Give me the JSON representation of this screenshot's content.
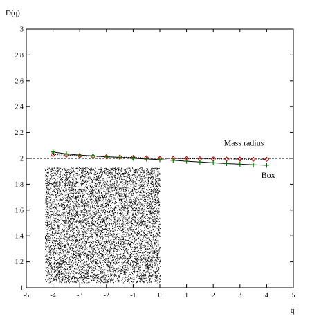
{
  "chart_data": {
    "type": "line",
    "ylabel": "D(q)",
    "xlabel": "q",
    "xlim": [
      -5,
      5
    ],
    "ylim": [
      1,
      3
    ],
    "xticks": [
      -5,
      -4,
      -3,
      -2,
      -1,
      0,
      1,
      2,
      3,
      4,
      5
    ],
    "yticks": [
      1,
      1.2,
      1.4,
      1.6,
      1.8,
      2,
      2.2,
      2.4,
      2.6,
      2.8,
      3
    ],
    "xtick_labels": [
      "-5",
      "-4",
      "-3",
      "-2",
      "-1",
      "0",
      "1",
      "2",
      "3",
      "4",
      "5"
    ],
    "ytick_labels": [
      "1",
      "1.2",
      "1.4",
      "1.6",
      "1.8",
      "2",
      "2.2",
      "2.4",
      "2.6",
      "2.8",
      "3"
    ],
    "reference_line": {
      "y": 2,
      "style": "dashed",
      "color": "#000000"
    },
    "inset": {
      "type": "random-dot-pattern",
      "x_range": [
        -4.3,
        0
      ],
      "y_range": [
        1.04,
        1.93
      ]
    },
    "series": [
      {
        "name": "Mass radius",
        "color": "#cc0000",
        "marker": "diamond",
        "line_style": "dotted",
        "x": [
          -4,
          -3.5,
          -3,
          -2.5,
          -2,
          -1.5,
          -1,
          -0.5,
          0,
          0.5,
          1,
          1.5,
          2,
          2.5,
          3,
          3.5,
          4
        ],
        "y": [
          2.03,
          2.025,
          2.02,
          2.016,
          2.013,
          2.01,
          2.007,
          2.004,
          2.0,
          1.999,
          1.998,
          1.997,
          1.996,
          1.995,
          1.994,
          1.993,
          1.993
        ]
      },
      {
        "name": "Box",
        "color": "#007700",
        "marker": "plus",
        "line_style": "solid",
        "x": [
          -4,
          -3.5,
          -3,
          -2.5,
          -2,
          -1.5,
          -1,
          -0.5,
          0,
          0.5,
          1,
          1.5,
          2,
          2.5,
          3,
          3.5,
          4
        ],
        "y": [
          2.05,
          2.035,
          2.025,
          2.02,
          2.013,
          2.008,
          2.0,
          1.995,
          1.99,
          1.985,
          1.978,
          1.972,
          1.966,
          1.96,
          1.955,
          1.95,
          1.947
        ]
      }
    ],
    "annotations": [
      {
        "text": "Mass radius",
        "x": 2.4,
        "y": 2.1
      },
      {
        "text": "Box",
        "x": 3.8,
        "y": 1.85
      }
    ]
  }
}
